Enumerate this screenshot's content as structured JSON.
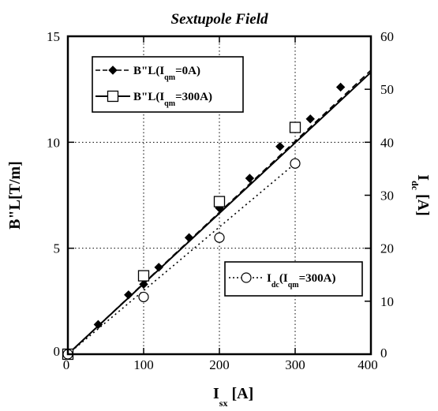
{
  "chart_data": {
    "type": "line",
    "title": "Sextupole Field",
    "xlabel": {
      "main": "I",
      "sub": "sx",
      "unit": "[A]"
    },
    "ylabel": "B\"L[T/m]",
    "y2label": {
      "main": "I",
      "sub": "dc",
      "unit": "[A]"
    },
    "xlim": [
      0,
      400
    ],
    "ylim": [
      0,
      15
    ],
    "y2lim": [
      0,
      60
    ],
    "xticks": [
      "0",
      "100",
      "200",
      "300",
      "400"
    ],
    "yticks": [
      "0",
      "5",
      "10",
      "15"
    ],
    "y2ticks": [
      "0",
      "10",
      "20",
      "30",
      "40",
      "50",
      "60"
    ],
    "grid": true,
    "series": [
      {
        "name": "B\"L(I_qm=0A)",
        "legend": {
          "prefix": "B\"L(I",
          "sub": "qm",
          "suffix": "=0A)"
        },
        "axis": "left",
        "marker": "diamond",
        "line": "dashed",
        "color": "#000000",
        "x": [
          0,
          40,
          80,
          100,
          120,
          160,
          200,
          240,
          280,
          320,
          360
        ],
        "y": [
          0,
          1.4,
          2.8,
          3.3,
          4.1,
          5.5,
          6.9,
          8.3,
          9.8,
          11.1,
          12.6
        ],
        "fit": {
          "x": [
            0,
            400
          ],
          "y": [
            0,
            13.4
          ]
        }
      },
      {
        "name": "B\"L(I_qm=300A)",
        "legend": {
          "prefix": "B\"L(I",
          "sub": "qm",
          "suffix": "=300A)"
        },
        "axis": "left",
        "marker": "open-square",
        "line": "solid",
        "color": "#000000",
        "x": [
          0,
          100,
          200,
          300
        ],
        "y": [
          0,
          3.7,
          7.2,
          10.7
        ],
        "fit": {
          "x": [
            0,
            400
          ],
          "y": [
            0,
            13.3
          ]
        }
      },
      {
        "name": "I_dc(I_qm=300A)",
        "legend": {
          "prefix": "I",
          "sub": "dc",
          "mid": "(I",
          "sub2": "qm",
          "suffix": "=300A)"
        },
        "axis": "right",
        "marker": "open-circle",
        "line": "dotted",
        "color": "#000000",
        "x": [
          0,
          100,
          200,
          300
        ],
        "y": [
          0,
          10.8,
          22,
          36
        ],
        "fit": {
          "x": [
            0,
            300
          ],
          "y": [
            0,
            36
          ]
        }
      }
    ]
  }
}
